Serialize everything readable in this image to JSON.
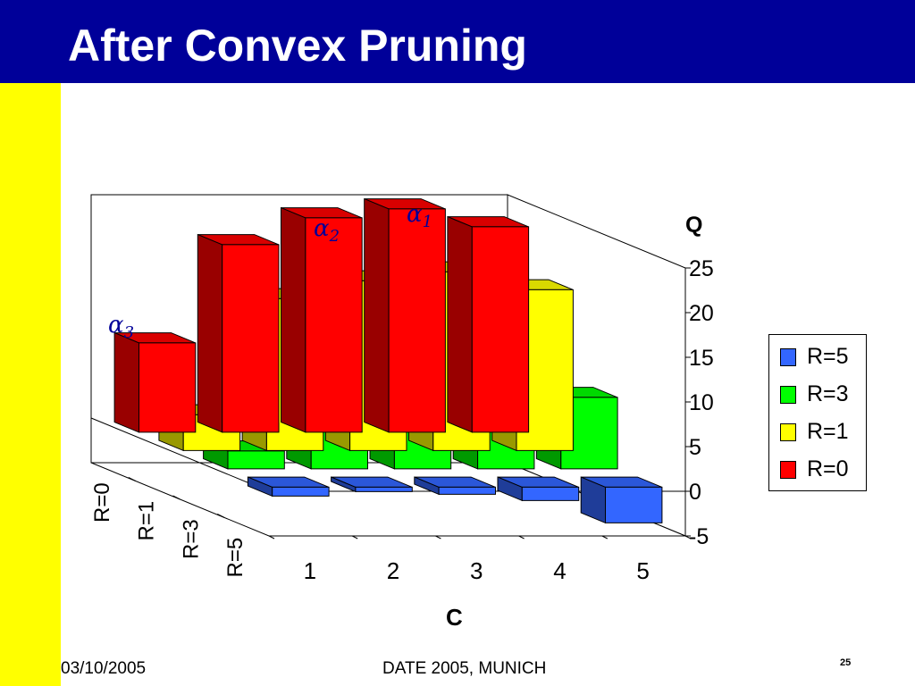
{
  "slide": {
    "title": "After Convex Pruning",
    "footer_date": "03/10/2005",
    "footer_center": "DATE 2005, MUNICH",
    "page_number": "25"
  },
  "annotations": [
    {
      "symbol": "α",
      "subscript": "1"
    },
    {
      "symbol": "α",
      "subscript": "2"
    },
    {
      "symbol": "α",
      "subscript": "3"
    }
  ],
  "chart_data": {
    "type": "bar",
    "subtype": "3d-column",
    "title": "",
    "xlabel": "C",
    "ylabel": "Q",
    "categories": [
      "1",
      "2",
      "3",
      "4",
      "5"
    ],
    "x_tick_labels": [
      "1",
      "2",
      "3",
      "4",
      "5"
    ],
    "y_tick_labels": [
      "25",
      "20",
      "15",
      "10",
      "5",
      "0",
      "-5"
    ],
    "depth_tick_labels": [
      "R=0",
      "R=1",
      "R=3",
      "R=5"
    ],
    "ylim": [
      -5,
      25
    ],
    "series": [
      {
        "name": "R=0",
        "color": "#ff0000",
        "values": [
          10,
          21,
          24,
          25,
          23
        ]
      },
      {
        "name": "R=1",
        "color": "#ffff00",
        "values": [
          4,
          17,
          19,
          20,
          18
        ]
      },
      {
        "name": "R=3",
        "color": "#00ff00",
        "values": [
          2,
          9,
          9,
          9,
          8
        ]
      },
      {
        "name": "R=5",
        "color": "#3366ff",
        "values": [
          -1,
          -0.5,
          -0.8,
          -1.5,
          -4
        ]
      }
    ],
    "legend": {
      "position": "right",
      "entries": [
        "R=5",
        "R=3",
        "R=1",
        "R=0"
      ]
    },
    "grid": false
  }
}
